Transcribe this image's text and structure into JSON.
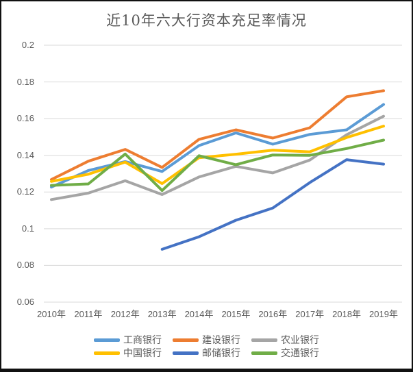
{
  "chart_data": {
    "type": "line",
    "title": "近10年六大行资本充足率情况",
    "x": [
      "2010年",
      "2011年",
      "2012年",
      "2013年",
      "2014年",
      "2015年",
      "2016年",
      "2017年",
      "2018年",
      "2019年"
    ],
    "series": [
      {
        "name": "工商银行",
        "color": "#5B9BD5",
        "values": [
          0.1227,
          0.1317,
          0.1366,
          0.1312,
          0.1453,
          0.1522,
          0.1461,
          0.1514,
          0.1539,
          0.1677
        ]
      },
      {
        "name": "建设银行",
        "color": "#ED7D31",
        "values": [
          0.1268,
          0.1368,
          0.1432,
          0.1334,
          0.1487,
          0.1539,
          0.1494,
          0.155,
          0.1719,
          0.1752
        ]
      },
      {
        "name": "农业银行",
        "color": "#A5A5A5",
        "values": [
          0.1159,
          0.1194,
          0.1261,
          0.1186,
          0.1282,
          0.134,
          0.1304,
          0.1374,
          0.1512,
          0.1613
        ]
      },
      {
        "name": "中国银行",
        "color": "#FFC000",
        "values": [
          0.1258,
          0.1297,
          0.1363,
          0.1246,
          0.1387,
          0.1406,
          0.1428,
          0.1419,
          0.1497,
          0.1559
        ]
      },
      {
        "name": "邮储银行",
        "color": "#4472C4",
        "values": [
          null,
          null,
          null,
          0.0888,
          0.0956,
          0.1046,
          0.1113,
          0.1251,
          0.1376,
          0.1352
        ]
      },
      {
        "name": "交通银行",
        "color": "#70AD47",
        "values": [
          0.1236,
          0.1244,
          0.1407,
          0.1208,
          0.1398,
          0.1349,
          0.1402,
          0.14,
          0.1437,
          0.1483
        ]
      }
    ],
    "y_tick_labels": [
      "0.2",
      "0.18",
      "0.16",
      "0.14",
      "0.12",
      "0.1",
      "0.08",
      "0.06"
    ],
    "y_tick_values": [
      0.2,
      0.18,
      0.16,
      0.14,
      0.12,
      0.1,
      0.08,
      0.06
    ],
    "ylim": [
      0.06,
      0.2
    ],
    "grid": true,
    "legend_position": "bottom",
    "legend_rows": [
      [
        "工商银行",
        "建设银行",
        "农业银行"
      ],
      [
        "中国银行",
        "邮储银行",
        "交通银行"
      ]
    ]
  },
  "style_colors": {
    "gridline": "#D9D9D9",
    "axis_text": "#595959",
    "title_text": "#595959",
    "background": "#FFFFFF",
    "frame_border": "#111111"
  }
}
